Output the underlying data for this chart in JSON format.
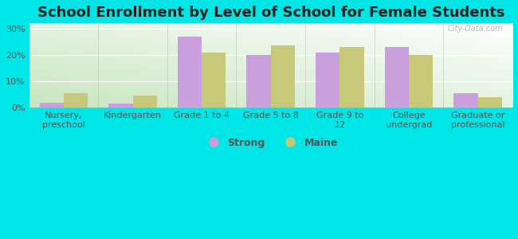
{
  "title": "School Enrollment by Level of School for Female Students",
  "categories": [
    "Nursery,\npreschool",
    "Kindergarten",
    "Grade 1 to 4",
    "Grade 5 to 8",
    "Grade 9 to\n12",
    "College\nundergrad",
    "Graduate or\nprofessional"
  ],
  "strong_values": [
    2.0,
    1.5,
    27.0,
    20.0,
    21.0,
    23.0,
    5.5
  ],
  "maine_values": [
    5.5,
    4.5,
    21.0,
    23.5,
    23.0,
    20.0,
    4.0
  ],
  "strong_color": "#c9a0dc",
  "maine_color": "#c8c87a",
  "bar_width": 0.35,
  "ylim": [
    0,
    32
  ],
  "yticks": [
    0,
    10,
    20,
    30
  ],
  "ytick_labels": [
    "0%",
    "10%",
    "20%",
    "30%"
  ],
  "background_color": "#00e5e5",
  "title_fontsize": 13,
  "tick_fontsize": 8,
  "legend_fontsize": 9,
  "watermark": "City-Data.com",
  "legend_labels": [
    "Strong",
    "Maine"
  ],
  "bg_color_bottom_left": "#c8e6c0",
  "bg_color_top_right": "#ffffff"
}
